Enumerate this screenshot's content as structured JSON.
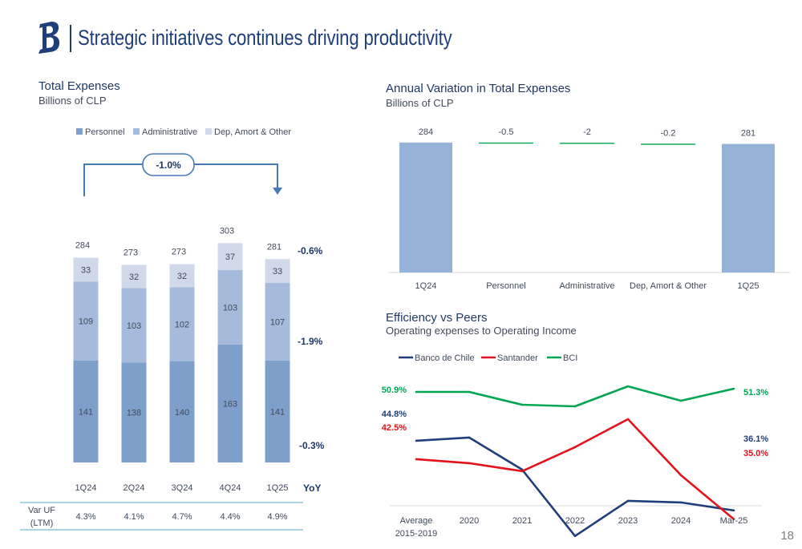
{
  "header": {
    "title": "Strategic initiatives continues driving productivity",
    "page_number": "18"
  },
  "total_expenses": {
    "title": "Total Expenses",
    "subtitle": "Billions of CLP",
    "change_bubble": "-1.0%",
    "yoy_header": "YoY",
    "var_uf_label": [
      "Var UF",
      "(LTM)"
    ],
    "var_uf_values": [
      "4.3%",
      "4.1%",
      "4.7%",
      "4.4%",
      "4.9%"
    ],
    "yoy_values": {
      "dep": "-0.6%",
      "admin": "-1.9%",
      "personnel": "-0.3%"
    }
  },
  "annual_variation": {
    "title": "Annual Variation in Total Expenses",
    "subtitle": "Billions of CLP"
  },
  "efficiency": {
    "title": "Efficiency vs Peers",
    "subtitle": "Operating expenses to Operating Income"
  },
  "chart_data": [
    {
      "type": "bar",
      "stacked": true,
      "categories": [
        "1Q24",
        "2Q24",
        "3Q24",
        "4Q24",
        "1Q25"
      ],
      "series": [
        {
          "name": "Personnel",
          "values": [
            141,
            138,
            140,
            163,
            141
          ],
          "color": "#7f9fcb"
        },
        {
          "name": "Administrative",
          "values": [
            109,
            103,
            102,
            103,
            107
          ],
          "color": "#a6bbdb"
        },
        {
          "name": "Dep, Amort & Other",
          "values": [
            33,
            32,
            32,
            37,
            33
          ],
          "color": "#cfd9ea"
        }
      ],
      "totals": [
        284,
        273,
        273,
        303,
        281
      ],
      "legend": "top",
      "grid": false
    },
    {
      "type": "bar",
      "subtype": "waterfall",
      "categories": [
        "1Q24",
        "Personnel",
        "Administrative",
        "Dep, Amort & Other",
        "1Q25"
      ],
      "values": [
        284,
        -0.5,
        -2,
        -0.2,
        281
      ],
      "labels": [
        "284",
        "-0.5",
        "-2",
        "-0.2",
        "281"
      ],
      "bar_color": "#95b3d7",
      "change_color": "#00a651",
      "grid": false
    },
    {
      "type": "line",
      "categories": [
        "Average 2015-2019",
        "2020",
        "2021",
        "2022",
        "2023",
        "2024",
        "Mar-25"
      ],
      "category_lines": [
        [
          "Average",
          "2015-2019"
        ],
        [
          "2020"
        ],
        [
          "2021"
        ],
        [
          "2022"
        ],
        [
          "2023"
        ],
        [
          "2024"
        ],
        [
          "Mar-25"
        ]
      ],
      "series": [
        {
          "name": "Banco de Chile",
          "values": [
            44.8,
            45.2,
            41.2,
            32.9,
            37.3,
            37.1,
            36.1
          ],
          "color": "#1f3f7a",
          "start_label": "44.8%",
          "end_label": "36.1%"
        },
        {
          "name": "Santander",
          "values": [
            42.5,
            42.0,
            41.0,
            44.0,
            47.5,
            40.5,
            35.0
          ],
          "color": "#e3121b",
          "start_label": "42.5%",
          "end_label": "35.0%"
        },
        {
          "name": "BCI",
          "values": [
            50.9,
            50.9,
            49.3,
            49.1,
            51.6,
            49.8,
            51.3
          ],
          "color": "#00a651",
          "start_label": "50.9%",
          "end_label": "51.3%"
        }
      ],
      "legend": "top-left",
      "grid": false
    }
  ]
}
